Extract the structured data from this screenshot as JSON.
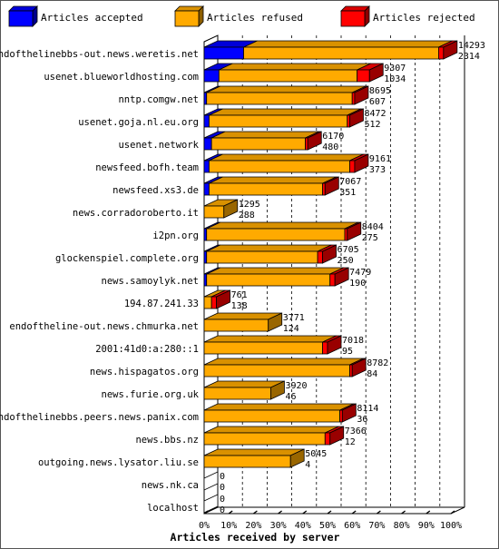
{
  "chart_data": {
    "type": "bar",
    "orientation": "horizontal",
    "stacked": true,
    "style": "3d",
    "xlabel": "Articles received by server",
    "xlim": [
      0,
      100
    ],
    "x_ticks": [
      "0%",
      "10%",
      "20%",
      "30%",
      "40%",
      "50%",
      "60%",
      "70%",
      "80%",
      "90%",
      "100%"
    ],
    "grid": true,
    "legend_position": "top",
    "series": [
      {
        "name": "Articles accepted",
        "color": "#0000ff"
      },
      {
        "name": "Articles refused",
        "color": "#ffaa00"
      },
      {
        "name": "Articles rejected",
        "color": "#ff0000"
      }
    ],
    "rows": [
      {
        "server": "endofthelinebbs-out.news.weretis.net",
        "count_top": "14293",
        "count_bottom": "2314",
        "accepted": 16,
        "refused": 79,
        "rejected": 2
      },
      {
        "server": "usenet.blueworldhosting.com",
        "count_top": "9307",
        "count_bottom": "1034",
        "accepted": 6,
        "refused": 56,
        "rejected": 5
      },
      {
        "server": "nntp.comgw.net",
        "count_top": "8695",
        "count_bottom": "607",
        "accepted": 1,
        "refused": 59,
        "rejected": 1
      },
      {
        "server": "usenet.goja.nl.eu.org",
        "count_top": "8472",
        "count_bottom": "512",
        "accepted": 2,
        "refused": 56,
        "rejected": 1
      },
      {
        "server": "usenet.network",
        "count_top": "6170",
        "count_bottom": "480",
        "accepted": 3,
        "refused": 38,
        "rejected": 1
      },
      {
        "server": "newsfeed.bofh.team",
        "count_top": "9161",
        "count_bottom": "373",
        "accepted": 2,
        "refused": 57,
        "rejected": 2
      },
      {
        "server": "newsfeed.xs3.de",
        "count_top": "7067",
        "count_bottom": "351",
        "accepted": 2,
        "refused": 46,
        "rejected": 1
      },
      {
        "server": "news.corradoroberto.it",
        "count_top": "1295",
        "count_bottom": "288",
        "accepted": 0,
        "refused": 8,
        "rejected": 0
      },
      {
        "server": "i2pn.org",
        "count_top": "8404",
        "count_bottom": "275",
        "accepted": 1,
        "refused": 56,
        "rejected": 1
      },
      {
        "server": "glockenspiel.complete.org",
        "count_top": "6705",
        "count_bottom": "250",
        "accepted": 1,
        "refused": 45,
        "rejected": 2
      },
      {
        "server": "news.samoylyk.net",
        "count_top": "7479",
        "count_bottom": "190",
        "accepted": 1,
        "refused": 50,
        "rejected": 2
      },
      {
        "server": "194.87.241.33",
        "count_top": "761",
        "count_bottom": "138",
        "accepted": 0,
        "refused": 3,
        "rejected": 2
      },
      {
        "server": "endoftheline-out.news.chmurka.net",
        "count_top": "3771",
        "count_bottom": "124",
        "accepted": 0,
        "refused": 26,
        "rejected": 0
      },
      {
        "server": "2001:41d0:a:280::1",
        "count_top": "7018",
        "count_bottom": "95",
        "accepted": 0,
        "refused": 48,
        "rejected": 2
      },
      {
        "server": "news.hispagatos.org",
        "count_top": "8782",
        "count_bottom": "84",
        "accepted": 0,
        "refused": 59,
        "rejected": 1
      },
      {
        "server": "news.furie.org.uk",
        "count_top": "3920",
        "count_bottom": "46",
        "accepted": 0,
        "refused": 27,
        "rejected": 0
      },
      {
        "server": "endofthelinebbs.peers.news.panix.com",
        "count_top": "8114",
        "count_bottom": "36",
        "accepted": 0,
        "refused": 55,
        "rejected": 1
      },
      {
        "server": "news.bbs.nz",
        "count_top": "7366",
        "count_bottom": "12",
        "accepted": 0,
        "refused": 49,
        "rejected": 2
      },
      {
        "server": "outgoing.news.lysator.liu.se",
        "count_top": "5045",
        "count_bottom": "4",
        "accepted": 0,
        "refused": 35,
        "rejected": 0
      },
      {
        "server": "news.nk.ca",
        "count_top": "0",
        "count_bottom": "0",
        "accepted": 0,
        "refused": 0,
        "rejected": 0
      },
      {
        "server": "localhost",
        "count_top": "0",
        "count_bottom": "0",
        "accepted": 0,
        "refused": 0,
        "rejected": 0
      }
    ]
  }
}
